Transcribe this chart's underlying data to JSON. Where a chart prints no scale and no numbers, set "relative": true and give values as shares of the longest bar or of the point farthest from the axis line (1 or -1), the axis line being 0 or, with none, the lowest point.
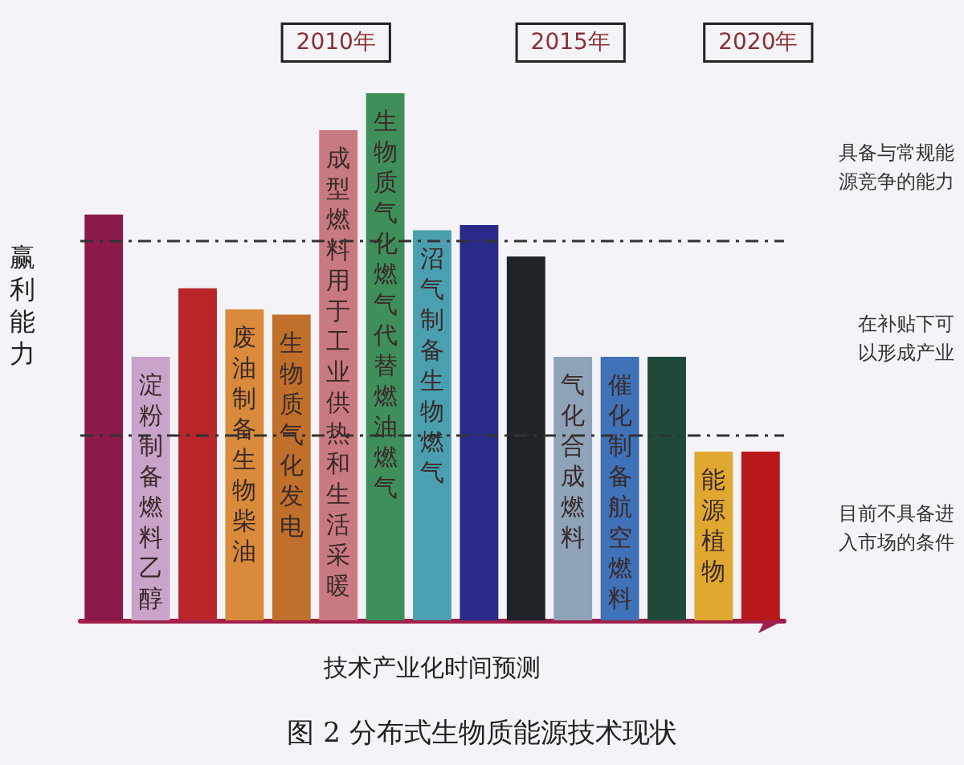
{
  "chart_data": {
    "type": "bar",
    "relative": true,
    "title": "图 2 分布式生物质能源技术现状",
    "xlabel": "技术产业化时间预测",
    "ylabel": "赢利能力",
    "categories": [
      null,
      "淀粉制备燃料乙醇",
      null,
      "废油制备生物柴油",
      "生物质气化发电",
      "成型燃料用于工业供热和生活采暖",
      "生物质气化燃气代替燃油燃气",
      "沼气制备生物燃气",
      null,
      null,
      "气化合成燃料",
      "催化制备航空燃料",
      null,
      "能源植物",
      null
    ],
    "values": [
      0.77,
      0.5,
      0.63,
      0.59,
      0.58,
      0.93,
      1,
      0.74,
      0.75,
      0.69,
      0.5,
      0.5,
      0.5,
      0.32,
      0.32
    ],
    "colors": [
      "#8b1a4a",
      "#c9a3c9",
      "#b8262a",
      "#d98a3a",
      "#c0702a",
      "#c97a80",
      "#3f8f5a",
      "#4aa0b0",
      "#2a2a8a",
      "#1f2328",
      "#8fa3b8",
      "#3f72b8",
      "#1f4a3a",
      "#e0a830",
      "#b81818"
    ],
    "ref_lines": [
      {
        "axis": "y",
        "value": 0.72,
        "color": "#333333",
        "line_style": "dashed"
      },
      {
        "axis": "y",
        "value": 0.35,
        "color": "#333333",
        "line_style": "dashed"
      }
    ],
    "annotations": [
      "2010年",
      "2015年",
      "2020年",
      "具备与常规能源竞争的能力",
      "在补贴下可以形成产业",
      "目前不具备进入市场的条件"
    ],
    "grid": false
  }
}
